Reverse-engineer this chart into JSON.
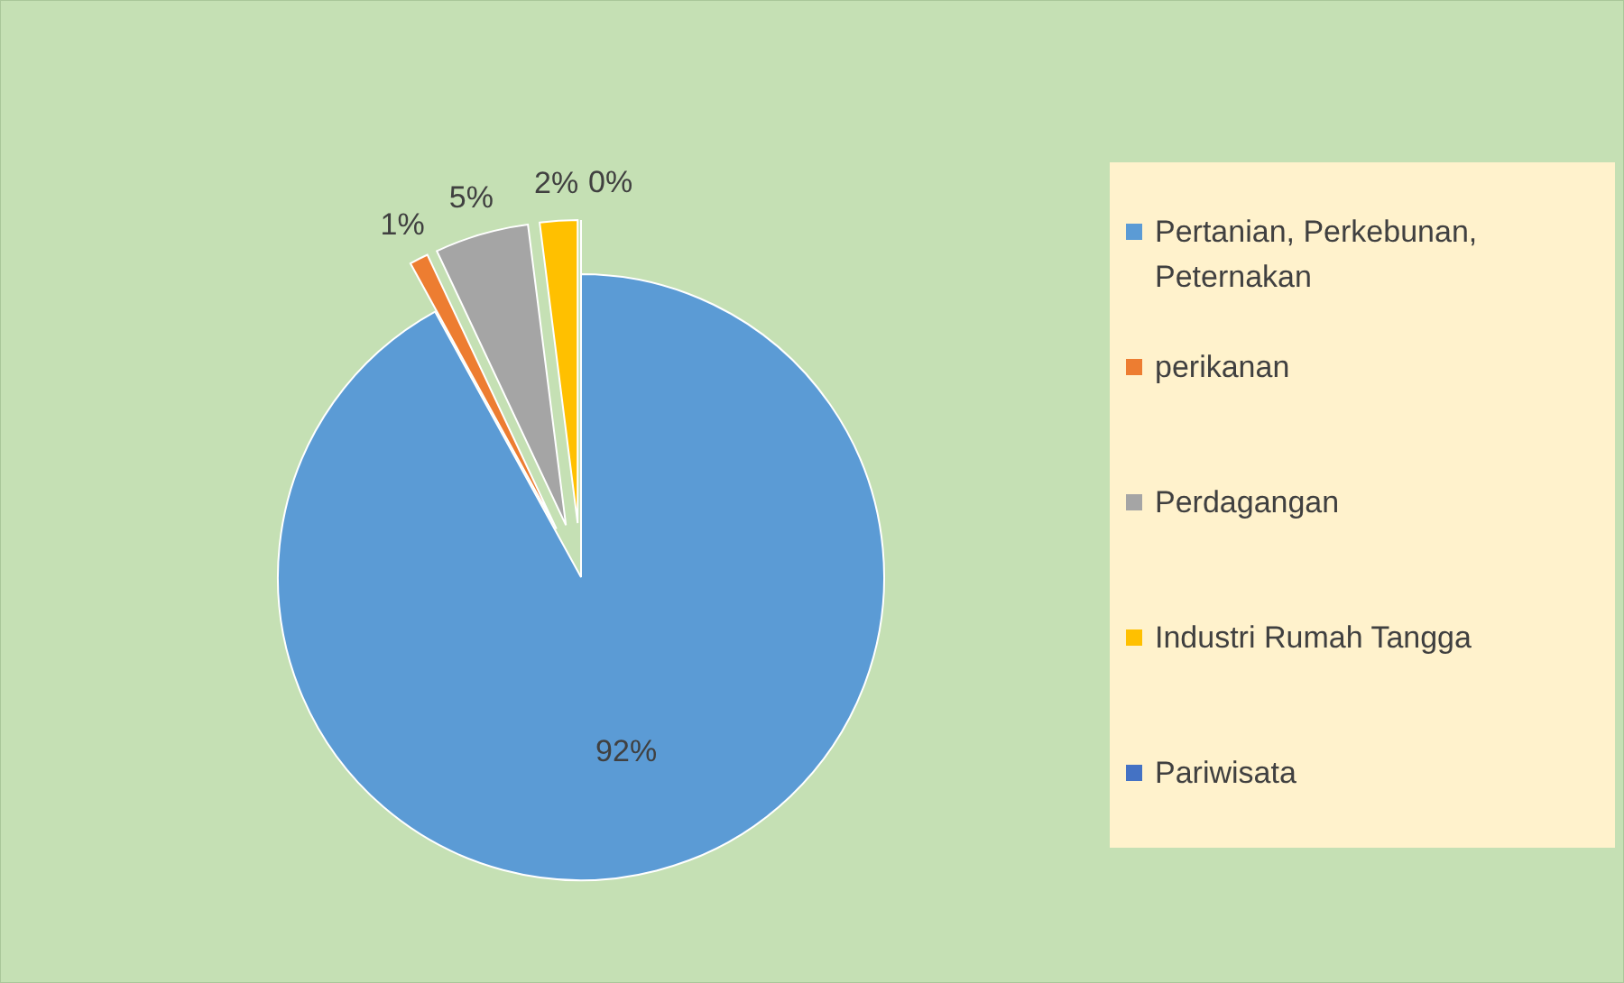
{
  "chart_data": {
    "type": "pie",
    "categories": [
      "Pertanian, Perkebunan, Peternakan",
      "perikanan",
      "Perdagangan",
      "Industri Rumah Tangga",
      "Pariwisata"
    ],
    "values": [
      92,
      1,
      5,
      2,
      0
    ],
    "colors": [
      "#5b9bd5",
      "#ed7d31",
      "#a5a5a5",
      "#ffc000",
      "#4472c4"
    ],
    "value_labels": [
      "92%",
      "1%",
      "5%",
      "2%",
      "0%"
    ],
    "legend": "right"
  }
}
